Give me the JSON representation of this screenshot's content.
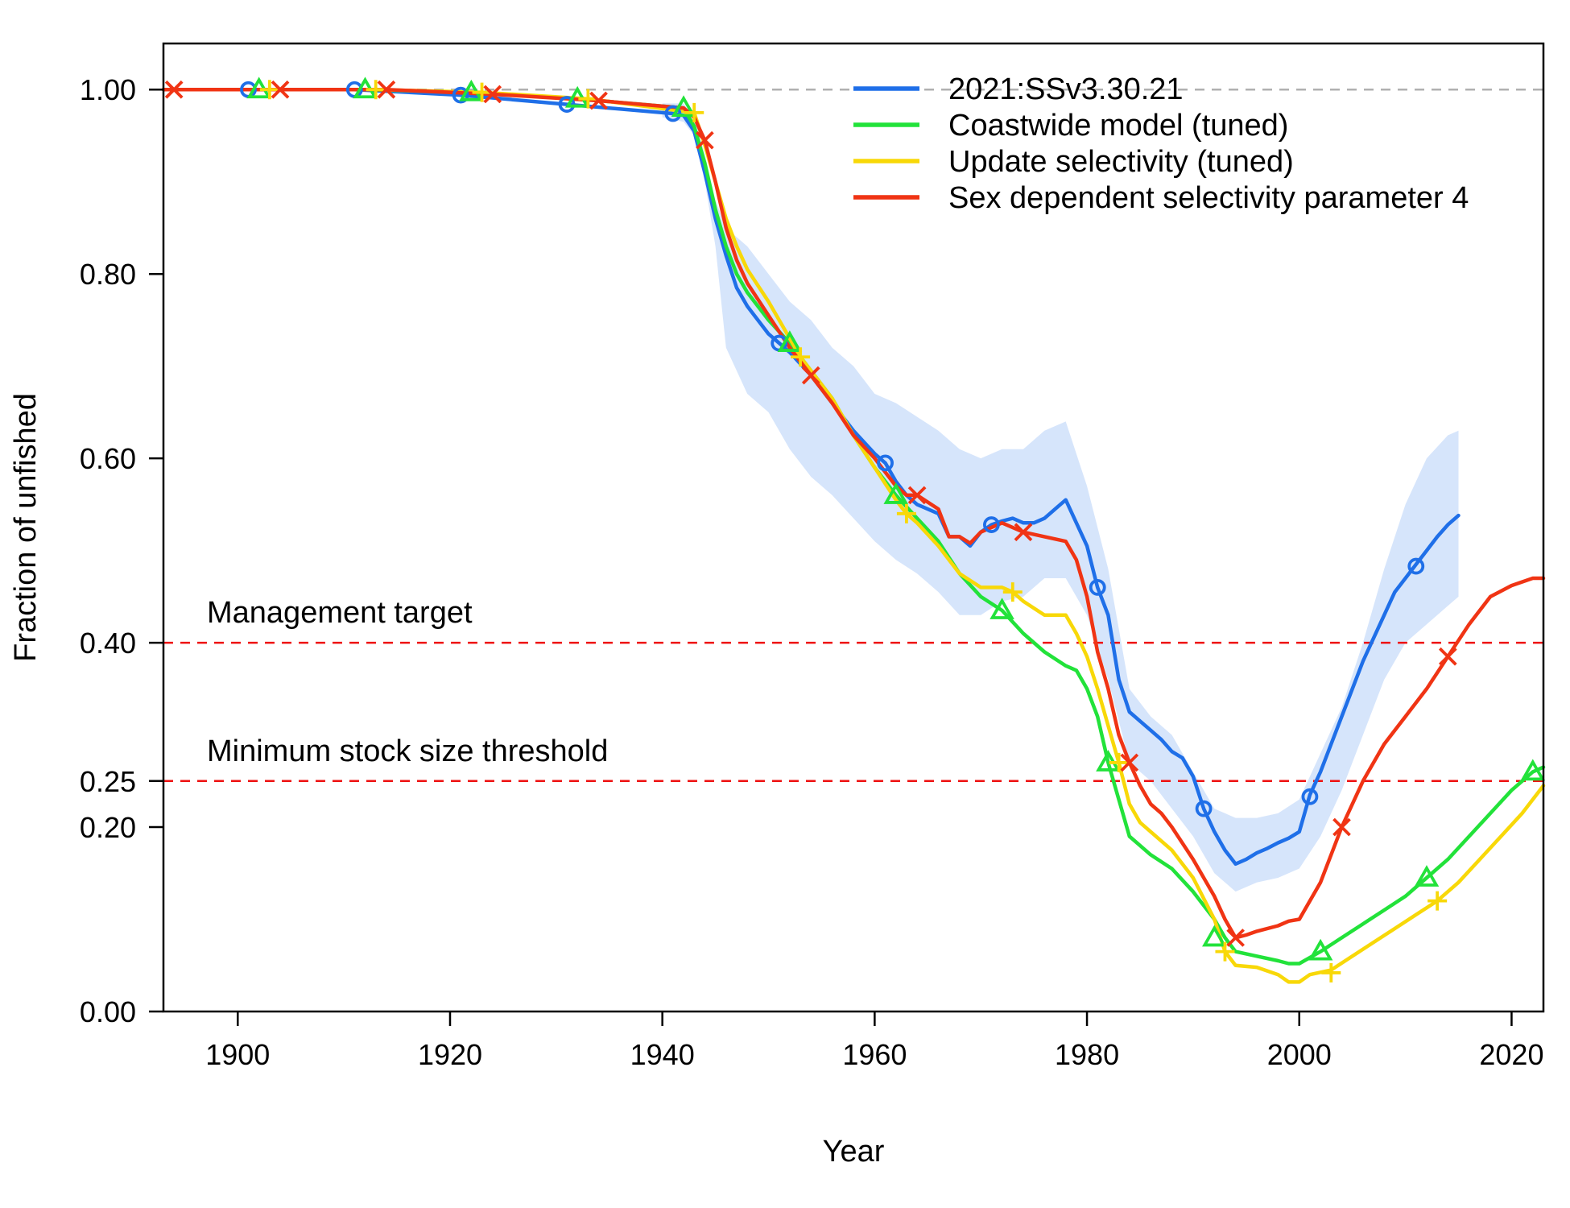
{
  "chart_data": {
    "type": "line",
    "title": "",
    "xlabel": "Year",
    "ylabel": "Fraction of unfished",
    "xlim": [
      1893,
      2023
    ],
    "ylim": [
      0,
      1.05
    ],
    "x_ticks": [
      1900,
      1920,
      1940,
      1960,
      1980,
      2000,
      2020
    ],
    "x_tick_labels": [
      "1900",
      "1920",
      "1940",
      "1960",
      "1980",
      "2000",
      "2020"
    ],
    "y_ticks": [
      0,
      0.2,
      0.25,
      0.4,
      0.6,
      0.8,
      1.0
    ],
    "y_tick_labels": [
      "0.00",
      "0.20",
      "0.25",
      "0.40",
      "0.60",
      "0.80",
      "1.00"
    ],
    "legend_position": "top-right",
    "unfished_reference": {
      "y": 1.0,
      "color": "#b0b0b0"
    },
    "reference_lines": [
      {
        "label": "Management target",
        "y": 0.4,
        "color": "#ee1111"
      },
      {
        "label": "Minimum stock size threshold",
        "y": 0.25,
        "color": "#ee1111"
      }
    ],
    "uncertainty_band": {
      "series": "2021:SSv3.30.21",
      "color": "#d6e5fb",
      "x": [
        1940,
        1942,
        1943,
        1944,
        1945,
        1946,
        1948,
        1950,
        1952,
        1954,
        1956,
        1958,
        1960,
        1962,
        1964,
        1966,
        1968,
        1970,
        1972,
        1974,
        1976,
        1978,
        1980,
        1982,
        1984,
        1986,
        1988,
        1990,
        1992,
        1994,
        1996,
        1998,
        2000,
        2002,
        2004,
        2006,
        2008,
        2010,
        2012,
        2014,
        2015
      ],
      "upper": [
        0.985,
        0.985,
        0.97,
        0.93,
        0.88,
        0.85,
        0.83,
        0.8,
        0.77,
        0.75,
        0.72,
        0.7,
        0.67,
        0.66,
        0.645,
        0.63,
        0.61,
        0.6,
        0.61,
        0.61,
        0.63,
        0.64,
        0.57,
        0.48,
        0.35,
        0.32,
        0.3,
        0.26,
        0.22,
        0.21,
        0.21,
        0.215,
        0.23,
        0.28,
        0.33,
        0.4,
        0.48,
        0.55,
        0.6,
        0.625,
        0.63
      ],
      "lower": [
        0.97,
        0.965,
        0.95,
        0.9,
        0.83,
        0.72,
        0.67,
        0.65,
        0.61,
        0.58,
        0.56,
        0.535,
        0.51,
        0.49,
        0.475,
        0.455,
        0.43,
        0.43,
        0.445,
        0.45,
        0.47,
        0.47,
        0.43,
        0.36,
        0.27,
        0.25,
        0.22,
        0.19,
        0.15,
        0.13,
        0.14,
        0.145,
        0.155,
        0.19,
        0.24,
        0.3,
        0.36,
        0.4,
        0.42,
        0.44,
        0.45
      ]
    },
    "series": [
      {
        "name": "2021:SSv3.30.21",
        "color": "#1f6fe8",
        "marker": "circle",
        "x": [
          1901,
          1911,
          1921,
          1931,
          1941,
          1942,
          1943,
          1944,
          1945,
          1946,
          1947,
          1948,
          1950,
          1951,
          1952,
          1954,
          1956,
          1958,
          1960,
          1961,
          1962,
          1963,
          1964,
          1966,
          1967,
          1968,
          1969,
          1970,
          1971,
          1972,
          1973,
          1974,
          1975,
          1976,
          1977,
          1978,
          1979,
          1980,
          1981,
          1982,
          1983,
          1984,
          1985,
          1986,
          1987,
          1988,
          1989,
          1990,
          1991,
          1992,
          1993,
          1994,
          1995,
          1996,
          1997,
          1998,
          1999,
          2000,
          2001,
          2002,
          2003,
          2004,
          2005,
          2006,
          2007,
          2008,
          2009,
          2010,
          2011,
          2012,
          2013,
          2014,
          2015
        ],
        "y": [
          1.0,
          1.0,
          0.994,
          0.984,
          0.974,
          0.972,
          0.955,
          0.91,
          0.86,
          0.82,
          0.785,
          0.765,
          0.735,
          0.725,
          0.715,
          0.69,
          0.66,
          0.63,
          0.605,
          0.595,
          0.575,
          0.56,
          0.55,
          0.54,
          0.515,
          0.515,
          0.505,
          0.52,
          0.528,
          0.532,
          0.535,
          0.53,
          0.53,
          0.535,
          0.545,
          0.555,
          0.53,
          0.505,
          0.46,
          0.43,
          0.36,
          0.325,
          0.315,
          0.305,
          0.295,
          0.282,
          0.275,
          0.255,
          0.22,
          0.195,
          0.175,
          0.16,
          0.165,
          0.172,
          0.177,
          0.183,
          0.188,
          0.195,
          0.235,
          0.26,
          0.29,
          0.32,
          0.35,
          0.38,
          0.405,
          0.43,
          0.455,
          0.47,
          0.485,
          0.5,
          0.515,
          0.528,
          0.538
        ],
        "marker_x": [
          1901,
          1911,
          1921,
          1931,
          1941,
          1951,
          1961,
          1971,
          1981,
          1991,
          2001,
          2011
        ],
        "marker_y": [
          1.0,
          1.0,
          0.994,
          0.984,
          0.974,
          0.725,
          0.595,
          0.528,
          0.46,
          0.22,
          0.233,
          0.483
        ]
      },
      {
        "name": "Coastwide model (tuned)",
        "color": "#22e23a",
        "marker": "triangle",
        "x": [
          1893,
          1902,
          1912,
          1922,
          1932,
          1942,
          1943,
          1944,
          1945,
          1946,
          1947,
          1948,
          1950,
          1952,
          1954,
          1956,
          1958,
          1960,
          1962,
          1964,
          1966,
          1968,
          1970,
          1972,
          1974,
          1976,
          1978,
          1979,
          1980,
          1981,
          1982,
          1983,
          1984,
          1985,
          1986,
          1988,
          1990,
          1992,
          1993,
          1994,
          1996,
          1998,
          1999,
          2000,
          2002,
          2004,
          2006,
          2008,
          2010,
          2012,
          2014,
          2016,
          2018,
          2020,
          2022,
          2023
        ],
        "y": [
          1.0,
          1.0,
          1.0,
          0.997,
          0.99,
          0.98,
          0.96,
          0.92,
          0.87,
          0.83,
          0.8,
          0.78,
          0.75,
          0.725,
          0.695,
          0.665,
          0.625,
          0.59,
          0.56,
          0.535,
          0.51,
          0.475,
          0.45,
          0.435,
          0.41,
          0.39,
          0.375,
          0.37,
          0.35,
          0.32,
          0.27,
          0.23,
          0.19,
          0.18,
          0.17,
          0.155,
          0.13,
          0.1,
          0.08,
          0.065,
          0.06,
          0.055,
          0.052,
          0.052,
          0.065,
          0.08,
          0.095,
          0.11,
          0.125,
          0.145,
          0.165,
          0.19,
          0.215,
          0.24,
          0.26,
          0.265
        ],
        "marker_x": [
          1902,
          1912,
          1922,
          1932,
          1942,
          1952,
          1962,
          1972,
          1982,
          1992,
          2002,
          2012,
          2022
        ],
        "marker_y": [
          1.0,
          1.0,
          0.997,
          0.99,
          0.98,
          0.725,
          0.56,
          0.435,
          0.27,
          0.08,
          0.065,
          0.145,
          0.26
        ]
      },
      {
        "name": "Update selectivity (tuned)",
        "color": "#f8d808",
        "marker": "plus",
        "x": [
          1893,
          1903,
          1913,
          1923,
          1933,
          1943,
          1944,
          1945,
          1946,
          1947,
          1948,
          1950,
          1952,
          1953,
          1954,
          1956,
          1958,
          1960,
          1962,
          1963,
          1964,
          1966,
          1968,
          1970,
          1972,
          1973,
          1974,
          1976,
          1978,
          1979,
          1980,
          1981,
          1982,
          1983,
          1984,
          1985,
          1986,
          1988,
          1990,
          1992,
          1993,
          1994,
          1996,
          1998,
          1999,
          2000,
          2001,
          2003,
          2005,
          2007,
          2009,
          2011,
          2013,
          2015,
          2017,
          2019,
          2021,
          2023
        ],
        "y": [
          1.0,
          1.0,
          1.0,
          0.997,
          0.99,
          0.975,
          0.94,
          0.9,
          0.86,
          0.83,
          0.805,
          0.77,
          0.73,
          0.71,
          0.695,
          0.665,
          0.625,
          0.59,
          0.555,
          0.54,
          0.53,
          0.505,
          0.475,
          0.46,
          0.46,
          0.455,
          0.445,
          0.43,
          0.43,
          0.41,
          0.385,
          0.35,
          0.31,
          0.27,
          0.225,
          0.205,
          0.195,
          0.175,
          0.145,
          0.1,
          0.065,
          0.05,
          0.048,
          0.04,
          0.032,
          0.032,
          0.04,
          0.045,
          0.06,
          0.075,
          0.09,
          0.105,
          0.12,
          0.14,
          0.165,
          0.19,
          0.215,
          0.245
        ],
        "marker_x": [
          1903,
          1913,
          1923,
          1933,
          1943,
          1953,
          1963,
          1973,
          1983,
          1993,
          2003,
          2013
        ],
        "marker_y": [
          1.0,
          1.0,
          0.997,
          0.99,
          0.975,
          0.71,
          0.54,
          0.455,
          0.27,
          0.065,
          0.042,
          0.12
        ]
      },
      {
        "name": "Sex dependent selectivity parameter 4",
        "color": "#f03414",
        "marker": "x",
        "x": [
          1893,
          1904,
          1914,
          1924,
          1934,
          1942,
          1943,
          1944,
          1945,
          1946,
          1947,
          1948,
          1950,
          1952,
          1954,
          1956,
          1958,
          1960,
          1962,
          1963,
          1964,
          1966,
          1967,
          1968,
          1969,
          1970,
          1972,
          1974,
          1976,
          1978,
          1979,
          1980,
          1981,
          1982,
          1983,
          1984,
          1985,
          1986,
          1987,
          1988,
          1990,
          1992,
          1993,
          1994,
          1995,
          1996,
          1998,
          1999,
          2000,
          2002,
          2004,
          2006,
          2008,
          2010,
          2012,
          2014,
          2016,
          2018,
          2020,
          2022,
          2023
        ],
        "y": [
          1.0,
          1.0,
          1.0,
          0.995,
          0.988,
          0.98,
          0.97,
          0.945,
          0.9,
          0.85,
          0.815,
          0.79,
          0.755,
          0.72,
          0.69,
          0.66,
          0.625,
          0.6,
          0.57,
          0.56,
          0.56,
          0.545,
          0.515,
          0.515,
          0.508,
          0.52,
          0.53,
          0.52,
          0.515,
          0.51,
          0.49,
          0.45,
          0.39,
          0.35,
          0.3,
          0.27,
          0.245,
          0.225,
          0.215,
          0.2,
          0.165,
          0.125,
          0.1,
          0.08,
          0.083,
          0.087,
          0.093,
          0.098,
          0.1,
          0.14,
          0.2,
          0.25,
          0.29,
          0.32,
          0.35,
          0.385,
          0.42,
          0.45,
          0.462,
          0.47,
          0.47
        ],
        "marker_x": [
          1894,
          1904,
          1914,
          1924,
          1934,
          1944,
          1954,
          1964,
          1974,
          1984,
          1994,
          2004,
          2014
        ],
        "marker_y": [
          1.0,
          1.0,
          1.0,
          0.995,
          0.988,
          0.945,
          0.69,
          0.56,
          0.52,
          0.27,
          0.08,
          0.2,
          0.385
        ]
      }
    ]
  }
}
